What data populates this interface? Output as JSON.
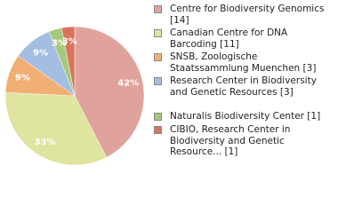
{
  "chart_data": {
    "type": "pie",
    "categories": [
      "Centre for Biodiversity Genomics [14]",
      "Canadian Centre for DNA Barcoding [11]",
      "SNSB, Zoologische Staatssammlung Muenchen [3]",
      "Research Center in Biodiversity and Genetic Resources [3]",
      "Naturalis Biodiversity Center [1]",
      "CIBIO, Research Center in Biodiversity and Genetic Resource... [1]"
    ],
    "values": [
      42,
      33,
      9,
      9,
      3,
      3
    ],
    "value_labels": [
      "42%",
      "33%",
      "9%",
      "9%",
      "3%",
      "3%"
    ],
    "colors": [
      "#e0a39b",
      "#dfe49e",
      "#f1af74",
      "#a3bee1",
      "#a7c97c",
      "#da735c"
    ]
  }
}
